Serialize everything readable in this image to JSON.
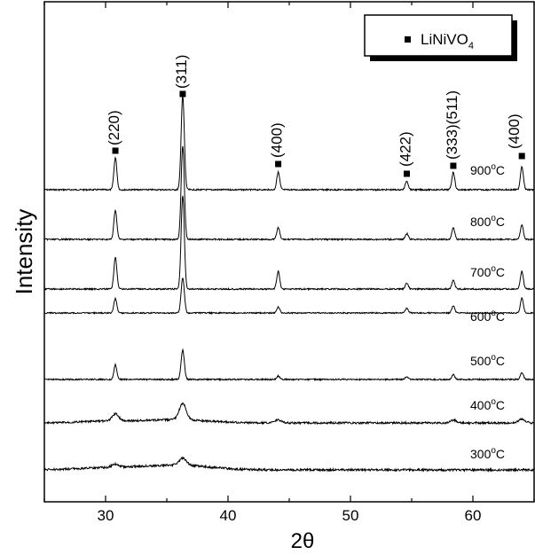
{
  "chart_data": {
    "type": "line",
    "xlabel": "2θ",
    "ylabel": "Intensity",
    "xlim": [
      25,
      65
    ],
    "xticks": [
      "30",
      "40",
      "50",
      "60"
    ],
    "legend": {
      "entry": "LiNiVO",
      "subscript": "4",
      "marker": "square",
      "position": "top-right"
    },
    "peaks": [
      {
        "label": "(220)",
        "x": 30.8
      },
      {
        "label": "(311)",
        "x": 36.3
      },
      {
        "label": "(400)",
        "x": 44.1
      },
      {
        "label": "(422)",
        "x": 54.6
      },
      {
        "label": "(333)(511)",
        "x": 58.4
      },
      {
        "label": "(400)",
        "x": 64.0
      }
    ],
    "series": [
      {
        "name": "900",
        "unit": "oC",
        "peak_heights": [
          0.55,
          1.6,
          0.3,
          0.15,
          0.3,
          0.4
        ]
      },
      {
        "name": "800",
        "unit": "oC",
        "peak_heights": [
          0.5,
          1.6,
          0.2,
          0.1,
          0.2,
          0.25
        ]
      },
      {
        "name": "700",
        "unit": "oC",
        "peak_heights": [
          0.55,
          1.6,
          0.3,
          0.1,
          0.15,
          0.3
        ]
      },
      {
        "name": "600",
        "unit": "oC",
        "peak_heights": [
          0.25,
          0.6,
          0.1,
          0.08,
          0.12,
          0.25
        ]
      },
      {
        "name": "500",
        "unit": "oC",
        "peak_heights": [
          0.25,
          0.5,
          0.06,
          0.05,
          0.08,
          0.12
        ]
      },
      {
        "name": "400",
        "unit": "oC",
        "peak_heights": [
          0.12,
          0.28,
          0.05,
          0.0,
          0.05,
          0.06
        ]
      },
      {
        "name": "300",
        "unit": "oC",
        "peak_heights": [
          0.05,
          0.12,
          0.0,
          0.0,
          0.0,
          0.0
        ]
      }
    ]
  }
}
